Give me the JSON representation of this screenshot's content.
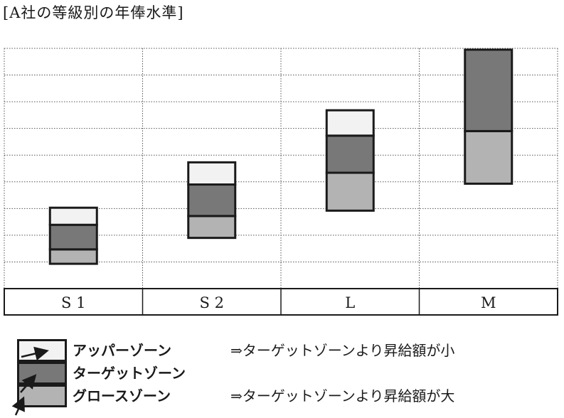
{
  "title": "[A社の等級別の年俸水準]",
  "colors": {
    "upper": "#f2f2f2",
    "target": "#787878",
    "growth": "#b3b3b3",
    "border": "#1a1a1a"
  },
  "grades": [
    "S 1",
    "S 2",
    "L",
    "M"
  ],
  "bands": [
    {
      "grade": "S 1",
      "low": 0.93,
      "growth_top": 1.47,
      "target_top": 2.39,
      "upper_top": 3.03
    },
    {
      "grade": "S 2",
      "low": 1.9,
      "growth_top": 2.72,
      "target_top": 3.9,
      "upper_top": 4.73
    },
    {
      "grade": "L",
      "low": 2.92,
      "growth_top": 4.34,
      "target_top": 5.73,
      "upper_top": 6.68
    },
    {
      "grade": "M",
      "low": 3.93,
      "growth_top": 5.9,
      "target_top": 8.95,
      "upper_top": null
    }
  ],
  "legend": [
    {
      "key": "upper",
      "label": "アッパーゾーン",
      "note": "⇒ターゲットゾーンより昇給額が小"
    },
    {
      "key": "target",
      "label": "ターゲットゾーン",
      "note": ""
    },
    {
      "key": "growth",
      "label": "グロースゾーン",
      "note": "⇒ターゲットゾーンより昇給額が大"
    }
  ]
}
